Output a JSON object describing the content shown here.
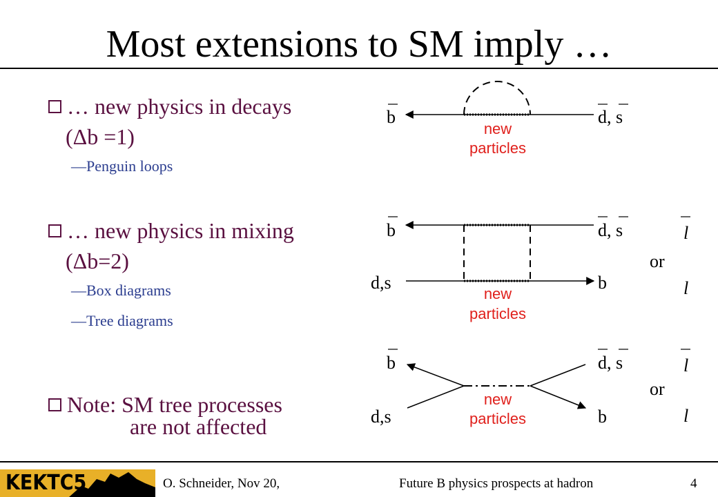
{
  "slide": {
    "title": "Most extensions to SM imply …",
    "bullets": [
      {
        "text": "… new physics in decays",
        "cont": "(Δb =1)",
        "subs": [
          "—Penguin loops"
        ]
      },
      {
        "text": "… new physics in mixing",
        "cont": "(Δb=2)",
        "subs": [
          "—Box diagrams",
          "—Tree diagrams"
        ]
      }
    ],
    "note": {
      "line1": "Note: SM tree processes",
      "line2": "are not affected"
    }
  },
  "diagrams": {
    "penguin": {
      "left": "b",
      "right": "d, s",
      "label1": "new",
      "label2": "particles"
    },
    "box": {
      "tl": "b",
      "tr": "d, s",
      "bl": "d,s",
      "br": "b",
      "label1": "new",
      "label2": "particles",
      "or_top": "l",
      "or": "or",
      "or_bottom": "l"
    },
    "tree": {
      "tl": "b",
      "tr": "d, s",
      "bl": "d,s",
      "br": "b",
      "label1": "new",
      "label2": "particles",
      "or_top": "l",
      "or": "or",
      "or_bottom": "l"
    }
  },
  "colors": {
    "bullet": "#5a1040",
    "sub": "#2b3d8f",
    "label": "#e0201c",
    "logo": "#e8b028"
  },
  "footer": {
    "logo": "KEKTC5",
    "author": "O. Schneider, Nov 20,",
    "talk": "Future B physics prospects at hadron",
    "page": "4"
  }
}
